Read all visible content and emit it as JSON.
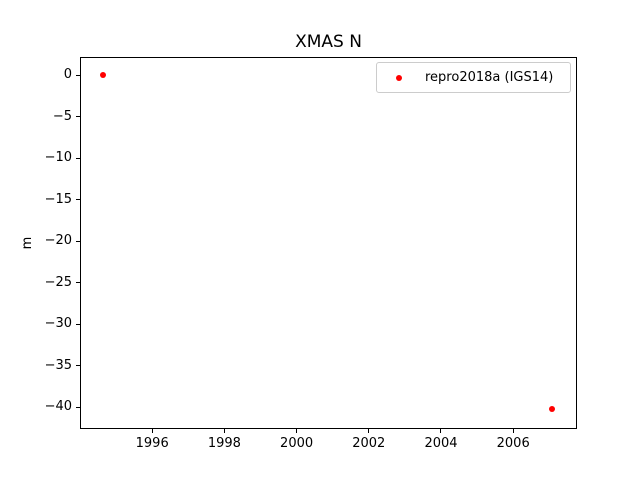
{
  "chart_data": {
    "type": "scatter",
    "title": "XMAS N",
    "xlabel": "",
    "ylabel": "m",
    "xlim": [
      1994.0,
      2007.74
    ],
    "ylim": [
      -42.65,
      2.11
    ],
    "x_ticks": [
      1996,
      1998,
      2000,
      2002,
      2004,
      2006
    ],
    "y_ticks": [
      0,
      -5,
      -10,
      -15,
      -20,
      -25,
      -30,
      -35,
      -40
    ],
    "grid": false,
    "background_color": "#ffffff",
    "spine_color": "#000000",
    "legend": {
      "position": "upper right",
      "border_color": "#cccccc",
      "entries": [
        {
          "label": "repro2018a (IGS14)",
          "marker": "dot-icon",
          "color": "#ff0000"
        }
      ]
    },
    "series": [
      {
        "name": "repro2018a (IGS14)",
        "marker": "dot",
        "color": "#ff0000",
        "marker_size_px": 6,
        "points": [
          [
            1994.63,
            0.0
          ],
          [
            2007.08,
            -40.2
          ]
        ]
      }
    ]
  }
}
